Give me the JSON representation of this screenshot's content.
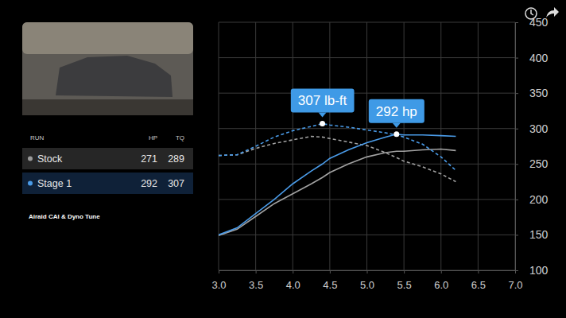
{
  "chart_data": {
    "type": "line",
    "x": [
      3.0,
      3.25,
      3.5,
      3.75,
      4.0,
      4.25,
      4.4,
      4.5,
      4.75,
      5.0,
      5.25,
      5.4,
      5.5,
      5.75,
      6.0,
      6.2
    ],
    "series": [
      {
        "color": "#a2a2a2",
        "line_style": "dashed",
        "values": [
          262,
          263,
          272,
          279,
          284,
          289,
          288,
          286,
          281,
          276,
          266,
          259,
          254,
          246,
          236,
          225
        ]
      },
      {
        "color": "#a2a2a2",
        "line_style": "solid",
        "values": [
          149,
          158,
          176,
          194,
          208,
          222,
          231,
          238,
          250,
          260,
          266,
          268,
          268,
          270,
          271,
          269
        ]
      },
      {
        "color": "#4a9be8",
        "line_style": "dashed",
        "values": [
          262,
          263,
          275,
          288,
          297,
          303,
          307,
          305,
          302,
          298,
          294,
          291,
          288,
          278,
          260,
          241
        ]
      },
      {
        "color": "#4a9be8",
        "line_style": "solid",
        "values": [
          150,
          160,
          180,
          200,
          222,
          240,
          250,
          258,
          270,
          280,
          288,
          292,
          291,
          291,
          290,
          289
        ]
      }
    ],
    "xlim": [
      3,
      7
    ],
    "xticks": [
      {
        "value": 3,
        "label": "3.0"
      },
      3.5,
      {
        "value": 4,
        "label": "4.0"
      },
      4.5,
      {
        "value": 5,
        "label": "5.0"
      },
      5.5,
      {
        "value": 6,
        "label": "6.0"
      },
      6.5,
      {
        "value": 7,
        "label": "7.0"
      }
    ],
    "ylim": [
      100,
      450
    ],
    "yticks": [
      100,
      150,
      200,
      250,
      300,
      350,
      400,
      450
    ],
    "grid": true,
    "annotations": [
      {
        "text": "307 lb-ft",
        "x": 4.4,
        "y": 307
      },
      {
        "text": "292 hp",
        "x": 5.4,
        "y": 292
      }
    ]
  },
  "panel": {
    "table": {
      "header": [
        "RUN",
        "HP",
        "TQ"
      ],
      "rows": [
        [
          "Stock",
          271,
          289
        ],
        [
          "Stage 1",
          292,
          307
        ]
      ]
    },
    "caption": "Airaid CAI & Dyno Tune"
  }
}
